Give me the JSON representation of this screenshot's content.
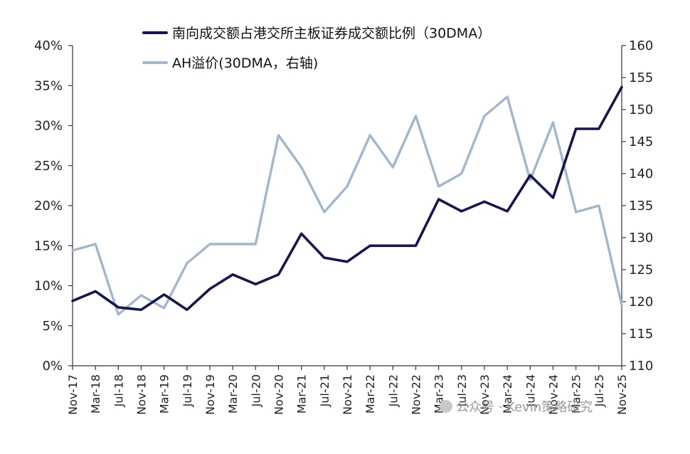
{
  "chart_data": {
    "type": "line",
    "x": [
      "Nov-17",
      "Mar-18",
      "Jul-18",
      "Nov-18",
      "Mar-19",
      "Jul-19",
      "Nov-19",
      "Mar-20",
      "Jul-20",
      "Nov-20",
      "Mar-21",
      "Jul-21",
      "Nov-21",
      "Mar-22",
      "Jul-22",
      "Nov-22",
      "Mar-23",
      "Jul-23",
      "Nov-23",
      "Mar-24",
      "Jul-24",
      "Nov-24",
      "Mar-25",
      "Jul-25",
      "Nov-25"
    ],
    "series": [
      {
        "name": "南向成交额占港交所主板证券成交额比例（30DMA）",
        "axis": "left",
        "color": "#15164f",
        "values": [
          8.1,
          9.3,
          7.3,
          7.0,
          8.9,
          7.0,
          9.6,
          11.4,
          10.2,
          11.4,
          16.5,
          13.5,
          13.0,
          15.0,
          15.0,
          15.0,
          20.8,
          19.3,
          20.5,
          19.3,
          23.8,
          21.0,
          29.6,
          29.6,
          34.8
        ]
      },
      {
        "name": "AH溢价(30DMA，右轴)",
        "axis": "right",
        "color": "#a2b6cc",
        "values": [
          128,
          129,
          118,
          121,
          119,
          126,
          129,
          129,
          129,
          146,
          141,
          134,
          138,
          146,
          141,
          149,
          138,
          140,
          149,
          152,
          139,
          148,
          134,
          135,
          119.5
        ]
      }
    ],
    "left_axis": {
      "ylim": [
        0,
        40
      ],
      "ticks": [
        "0%",
        "5%",
        "10%",
        "15%",
        "20%",
        "25%",
        "30%",
        "35%",
        "40%"
      ]
    },
    "right_axis": {
      "ylim": [
        110,
        160
      ],
      "ticks": [
        "110",
        "115",
        "120",
        "125",
        "130",
        "135",
        "140",
        "145",
        "150",
        "155",
        "160"
      ]
    },
    "legend_position": "top-center",
    "grid": false
  },
  "watermark": {
    "text": "公众号 · Kevin策略研究"
  }
}
